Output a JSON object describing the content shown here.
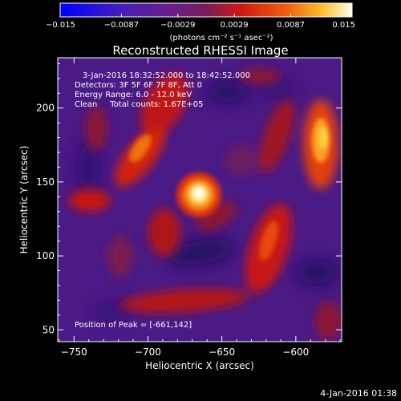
{
  "title": "Reconstructed RHESSI Image",
  "footer_date": "4-Jan-2016 01:38",
  "colorbar": {
    "min": -0.015,
    "max": 0.015,
    "tick_values": [
      -0.015,
      -0.0087,
      -0.0029,
      0.0029,
      0.0087,
      0.015
    ],
    "tick_labels": [
      "−0.015",
      "−0.0087",
      "−0.0029",
      "0.0029",
      "0.0087",
      "0.015"
    ],
    "unit_label": "(photons cm⁻² s⁻¹ asec⁻²)",
    "colormap": "blue-purple-red-orange-yellow-white"
  },
  "annotations": [
    "3-Jan-2016 18:32:52.000 to 18:42:52.000",
    "Detectors: 3F 5F 6F 7F 8F, Att 0",
    "Energy Range: 6.0 - 12.0 keV",
    "Clean     Total counts: 1.67E+05"
  ],
  "peak_label": "Position of Peak = [-661,142]",
  "chart_data": {
    "type": "heatmap",
    "title": "Reconstructed RHESSI Image",
    "xlabel": "Heliocentric X (arcsec)",
    "ylabel": "Heliocentric Y (arcsec)",
    "xlim": [
      -761,
      -569
    ],
    "ylim": [
      42,
      234
    ],
    "x_ticks": [
      -750,
      -700,
      -650,
      -600
    ],
    "x_tick_labels": [
      "−750",
      "−700",
      "−650",
      "−600"
    ],
    "y_ticks": [
      50,
      100,
      150,
      200
    ],
    "y_tick_labels": [
      "50",
      "100",
      "150",
      "200"
    ],
    "peak": {
      "x": -661,
      "y": 142
    },
    "value_range": [
      -0.015,
      0.015
    ]
  }
}
